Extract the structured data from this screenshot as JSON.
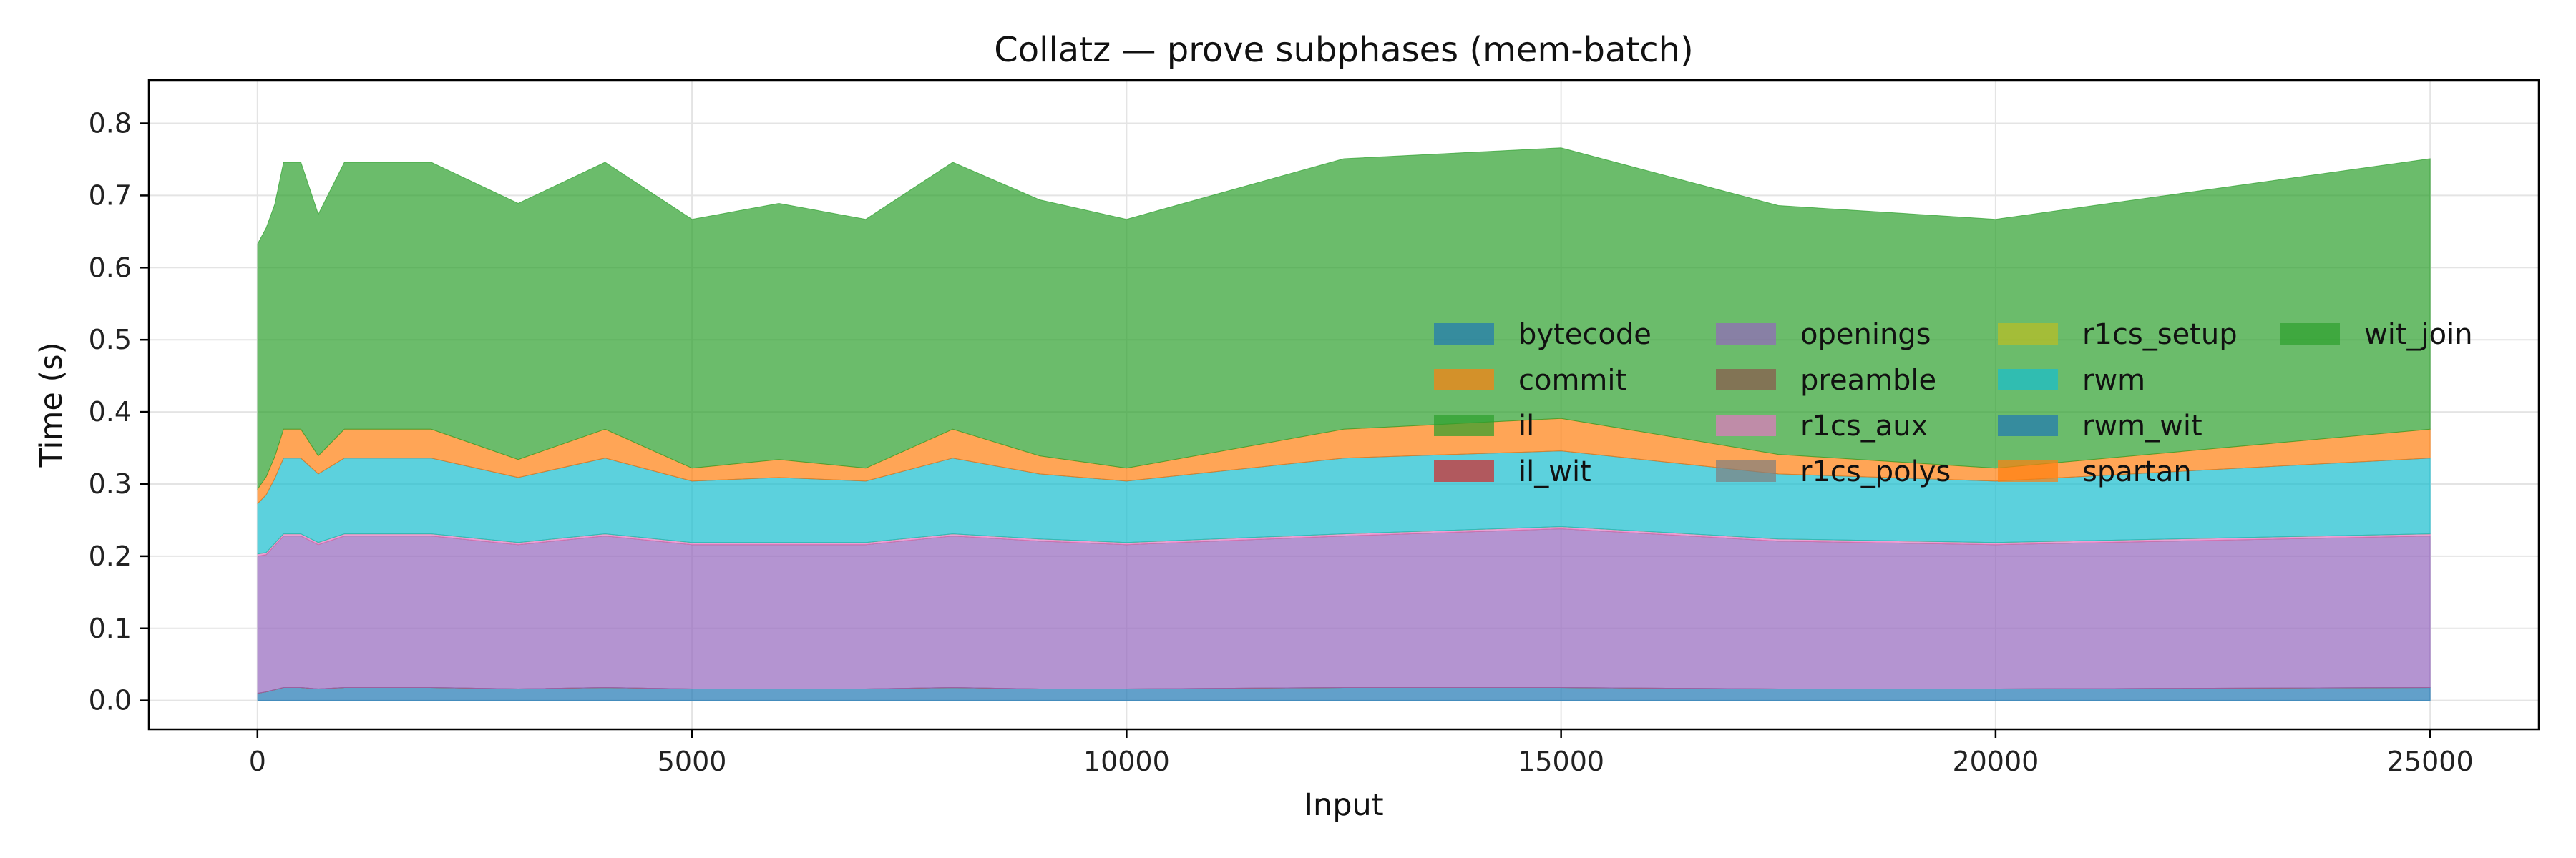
{
  "chart_data": {
    "type": "area",
    "stacked": true,
    "title": "Collatz — prove subphases (mem-batch)",
    "xlabel": "Input",
    "ylabel": "Time (s)",
    "xlim": [
      -1250,
      26250
    ],
    "ylim": [
      -0.04,
      0.86
    ],
    "xticks": [
      0,
      5000,
      10000,
      15000,
      20000,
      25000
    ],
    "yticks": [
      0.0,
      0.1,
      0.2,
      0.3,
      0.4,
      0.5,
      0.6,
      0.7,
      0.8
    ],
    "grid": true,
    "legend_position": "right, upper-middle",
    "legend_columns": 4,
    "x": [
      2,
      100,
      200,
      300,
      500,
      700,
      1000,
      2000,
      3000,
      4000,
      5000,
      6000,
      7000,
      8000,
      9000,
      10000,
      12500,
      15000,
      17500,
      20000,
      25000
    ],
    "series": [
      {
        "name": "bytecode",
        "color": "#1f77b4",
        "values": [
          0.01,
          0.012,
          0.015,
          0.018,
          0.018,
          0.016,
          0.018,
          0.018,
          0.016,
          0.018,
          0.016,
          0.016,
          0.016,
          0.018,
          0.016,
          0.016,
          0.018,
          0.018,
          0.016,
          0.016,
          0.018
        ]
      },
      {
        "name": "commit",
        "color": "#ff7f0e",
        "values": [
          0.0,
          0.0,
          0.0,
          0.0,
          0.0,
          0.0,
          0.0,
          0.0,
          0.0,
          0.0,
          0.0,
          0.0,
          0.0,
          0.0,
          0.0,
          0.0,
          0.0,
          0.0,
          0.0,
          0.0,
          0.0
        ]
      },
      {
        "name": "il",
        "color": "#2ca02c",
        "values": [
          0.0,
          0.0,
          0.0,
          0.0,
          0.0,
          0.0,
          0.0,
          0.0,
          0.0,
          0.0,
          0.0,
          0.0,
          0.0,
          0.0,
          0.0,
          0.0,
          0.0,
          0.0,
          0.0,
          0.0,
          0.0
        ]
      },
      {
        "name": "il_wit",
        "color": "#d62728",
        "values": [
          0.0,
          0.0,
          0.0,
          0.0,
          0.0,
          0.0,
          0.0,
          0.0,
          0.0,
          0.0,
          0.0,
          0.0,
          0.0,
          0.0,
          0.0,
          0.0,
          0.0,
          0.0,
          0.0,
          0.0,
          0.0
        ]
      },
      {
        "name": "openings",
        "color": "#9467bd",
        "values": [
          0.19,
          0.19,
          0.2,
          0.21,
          0.21,
          0.2,
          0.21,
          0.21,
          0.2,
          0.21,
          0.2,
          0.2,
          0.2,
          0.21,
          0.205,
          0.2,
          0.21,
          0.22,
          0.205,
          0.2,
          0.21
        ]
      },
      {
        "name": "preamble",
        "color": "#8c564b",
        "values": [
          0.0,
          0.0,
          0.0,
          0.0,
          0.0,
          0.0,
          0.0,
          0.0,
          0.0,
          0.0,
          0.0,
          0.0,
          0.0,
          0.0,
          0.0,
          0.0,
          0.0,
          0.0,
          0.0,
          0.0,
          0.0
        ]
      },
      {
        "name": "r1cs_aux",
        "color": "#e377c2",
        "values": [
          0.003,
          0.003,
          0.003,
          0.003,
          0.003,
          0.003,
          0.003,
          0.003,
          0.003,
          0.003,
          0.003,
          0.003,
          0.003,
          0.003,
          0.003,
          0.003,
          0.003,
          0.003,
          0.003,
          0.003,
          0.003
        ]
      },
      {
        "name": "r1cs_polys",
        "color": "#7f7f7f",
        "values": [
          0.0,
          0.0,
          0.0,
          0.0,
          0.0,
          0.0,
          0.0,
          0.0,
          0.0,
          0.0,
          0.0,
          0.0,
          0.0,
          0.0,
          0.0,
          0.0,
          0.0,
          0.0,
          0.0,
          0.0,
          0.0
        ]
      },
      {
        "name": "r1cs_setup",
        "color": "#bcbd22",
        "values": [
          0.0,
          0.0,
          0.0,
          0.0,
          0.0,
          0.0,
          0.0,
          0.0,
          0.0,
          0.0,
          0.0,
          0.0,
          0.0,
          0.0,
          0.0,
          0.0,
          0.0,
          0.0,
          0.0,
          0.0,
          0.0
        ]
      },
      {
        "name": "rwm",
        "color": "#17becf",
        "values": [
          0.07,
          0.08,
          0.09,
          0.105,
          0.105,
          0.095,
          0.105,
          0.105,
          0.09,
          0.105,
          0.085,
          0.09,
          0.085,
          0.105,
          0.09,
          0.085,
          0.105,
          0.105,
          0.09,
          0.085,
          0.105
        ]
      },
      {
        "name": "rwm_wit",
        "color": "#1f77b4",
        "values": [
          0.0,
          0.0,
          0.0,
          0.0,
          0.0,
          0.0,
          0.0,
          0.0,
          0.0,
          0.0,
          0.0,
          0.0,
          0.0,
          0.0,
          0.0,
          0.0,
          0.0,
          0.0,
          0.0,
          0.0,
          0.0
        ]
      },
      {
        "name": "spartan",
        "color": "#ff7f0e",
        "values": [
          0.02,
          0.025,
          0.03,
          0.04,
          0.04,
          0.025,
          0.04,
          0.04,
          0.025,
          0.04,
          0.018,
          0.025,
          0.018,
          0.04,
          0.025,
          0.018,
          0.04,
          0.045,
          0.027,
          0.018,
          0.04
        ]
      },
      {
        "name": "wit_join",
        "color": "#2ca02c",
        "values": [
          0.34,
          0.345,
          0.35,
          0.37,
          0.37,
          0.335,
          0.37,
          0.37,
          0.355,
          0.37,
          0.345,
          0.355,
          0.345,
          0.37,
          0.355,
          0.345,
          0.375,
          0.375,
          0.345,
          0.345,
          0.375
        ]
      }
    ]
  }
}
